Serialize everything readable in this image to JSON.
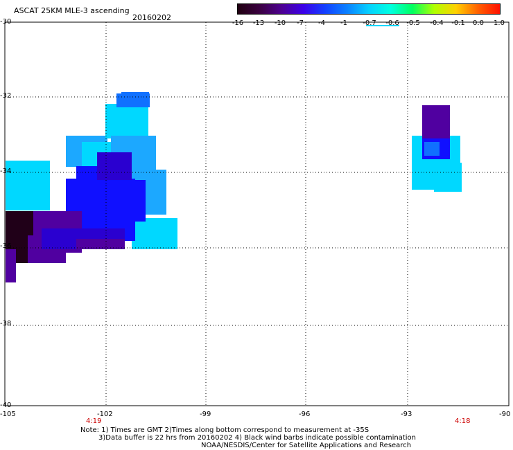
{
  "header": {
    "title": "ASCAT 25KM MLE-3 ascending",
    "date": "20160202"
  },
  "colorbar": {
    "labels": [
      "-16",
      "-13",
      "-10",
      "-7",
      "-4",
      "-1",
      "-0.7",
      "-0.6",
      "-0.5",
      "-0.4",
      "-0.1",
      "0.0",
      "1.0"
    ],
    "colors": [
      "#200010",
      "#3a0040",
      "#4d0090",
      "#3b00e8",
      "#1240ff",
      "#0a80ff",
      "#05d0ff",
      "#00ffe0",
      "#00ff60",
      "#b0ff00",
      "#ffd000",
      "#ff6000",
      "#ff1000"
    ]
  },
  "axes": {
    "y_labels": [
      "-30",
      "-32",
      "-34",
      "-36",
      "-38",
      "-40"
    ],
    "x_labels": [
      "-105",
      "-102",
      "-99",
      "-96",
      "-93",
      "-90"
    ],
    "time_labels": [
      "4:19",
      "4:18"
    ]
  },
  "notes": {
    "line1": "Note: 1) Times are GMT 2)Times along bottom correspond to measurement at -35S",
    "line2": "3)Data buffer is 22 hrs from 20160202 4) Black wind barbs indicate possible contamination",
    "line3": "NOAA/NESDIS/Center for Satellite Applications and Research"
  },
  "colors": {
    "cyan": "#00d8ff",
    "sky": "#1ca8ff",
    "azure": "#1070ff",
    "blue": "#1010ff",
    "indigo": "#2a00d0",
    "purple": "#5000a0",
    "dark": "#200018",
    "gridline": "#000000",
    "red_label": "#cc0000"
  }
}
